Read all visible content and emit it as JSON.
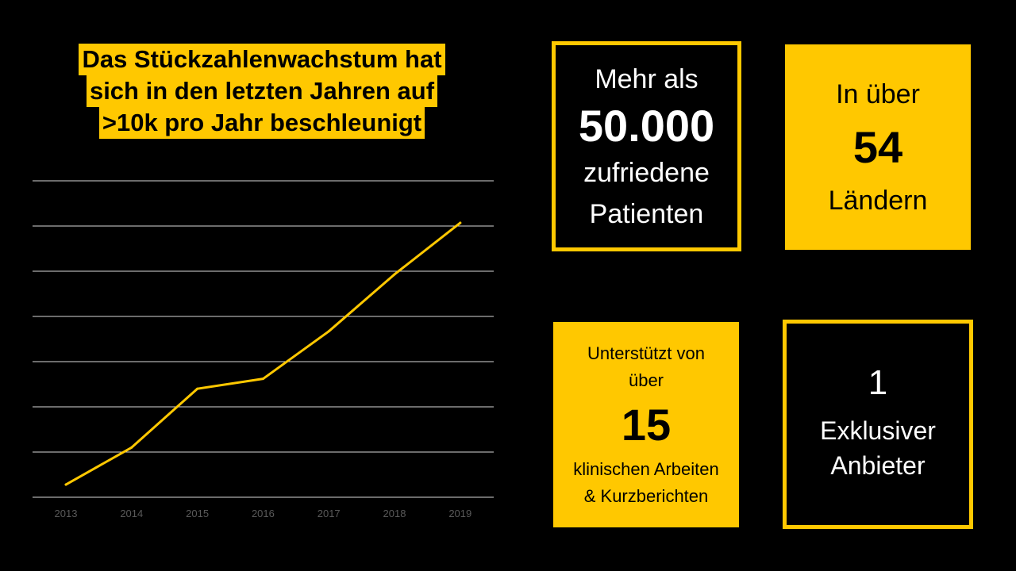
{
  "title_lines": [
    "Das Stückzahlenwachstum hat",
    "sich in den letzten Jahren auf",
    ">10k pro Jahr beschleunigt"
  ],
  "colors": {
    "accent": "#FFC800",
    "background": "#000000",
    "grid": "#D9D9D9",
    "tick": "#595959"
  },
  "chart_data": {
    "type": "line",
    "categories": [
      "2013",
      "2014",
      "2015",
      "2016",
      "2017",
      "2018",
      "2019"
    ],
    "series": [
      {
        "color": "#FFC800",
        "values": [
          0.28,
          1.1,
          2.4,
          2.62,
          3.67,
          4.93,
          6.07
        ]
      }
    ],
    "ylim": [
      0,
      7
    ],
    "grid": true,
    "y_tick_labels_shown": false,
    "legend": "none"
  },
  "cards": {
    "patients": {
      "pre": "Mehr als",
      "number": "50.000",
      "post_1": "zufriedene",
      "post_2": "Patienten"
    },
    "countries": {
      "pre": "In über",
      "number": "54",
      "post": "Ländern"
    },
    "studies": {
      "pre_1": "Unterstützt von",
      "pre_2": "über",
      "number": "15",
      "post_1": "klinischen Arbeiten",
      "post_2": "& Kurzberichten"
    },
    "supplier": {
      "number": "1",
      "post_1": "Exklusiver",
      "post_2": "Anbieter"
    }
  }
}
